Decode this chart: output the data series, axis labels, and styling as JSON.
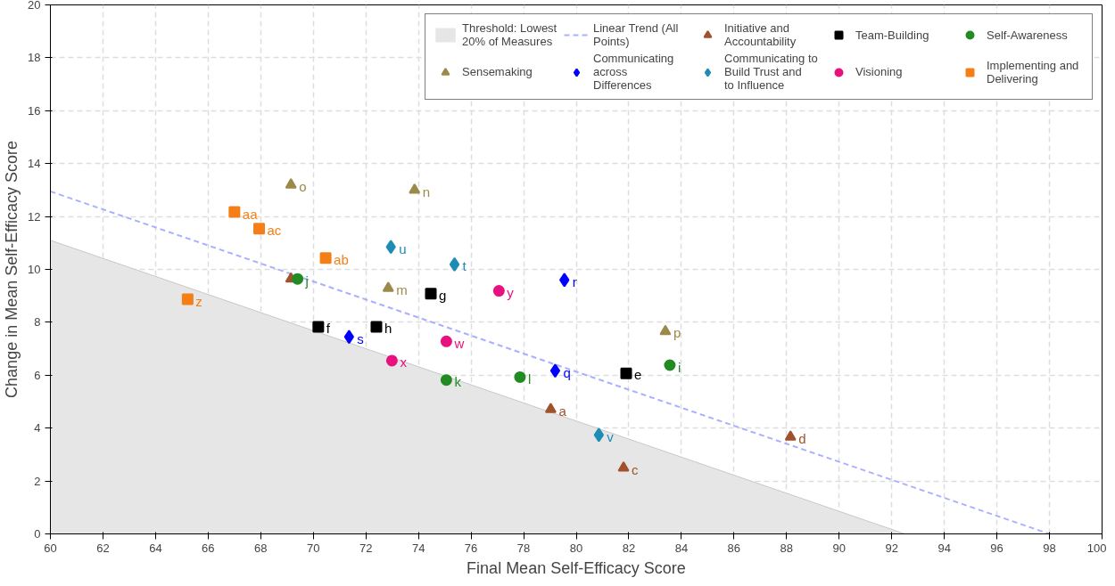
{
  "chart_data": {
    "type": "scatter",
    "xlabel": "Final Mean Self-Efficacy Score",
    "ylabel": "Change in Mean Self-Efficacy Score",
    "xlim": [
      60,
      100
    ],
    "ylim": [
      0,
      20
    ],
    "xticks": [
      60,
      62,
      64,
      66,
      68,
      70,
      72,
      74,
      76,
      78,
      80,
      82,
      84,
      86,
      88,
      90,
      92,
      94,
      96,
      98,
      100
    ],
    "yticks": [
      0,
      2,
      4,
      6,
      8,
      10,
      12,
      14,
      16,
      18,
      20
    ],
    "grid": true,
    "legend": "top right",
    "series": [
      {
        "name": "Threshold: Lowest 20% of Measures",
        "type": "area",
        "color": "#e6e6e6",
        "x": [
          60,
          92.5
        ],
        "values": [
          11.1,
          0
        ]
      },
      {
        "name": "Linear Trend (All Points)",
        "type": "line",
        "line_style": "dashed",
        "color": "#aab0ff",
        "x": [
          60,
          98
        ],
        "values": [
          12.95,
          0
        ]
      },
      {
        "name": "Initiative and Accountability",
        "marker": "triangle",
        "color": "#a0522d",
        "x": [
          79.03,
          81.8,
          88.15,
          69.15
        ],
        "values": [
          4.71,
          2.5,
          3.67,
          9.64
        ],
        "value_labels": [
          "a",
          "c",
          "d",
          null
        ]
      },
      {
        "name": "Team-Building",
        "marker": "square",
        "color": "#000000",
        "x": [
          81.9,
          70.19,
          74.47,
          72.4
        ],
        "values": [
          6.07,
          7.83,
          9.08,
          7.83
        ],
        "value_labels": [
          "e",
          "f",
          "g",
          "h"
        ]
      },
      {
        "name": "Self-Awareness",
        "marker": "circle",
        "color": "#228b22",
        "x": [
          83.56,
          69.4,
          75.06,
          77.86
        ],
        "values": [
          6.38,
          9.64,
          5.82,
          5.93
        ],
        "value_labels": [
          "i",
          "j",
          "k",
          "l"
        ]
      },
      {
        "name": "Sensemaking",
        "marker": "triangle",
        "color": "#9c8a4a",
        "x": [
          72.85,
          73.85,
          69.15,
          83.39
        ],
        "values": [
          9.29,
          13.0,
          13.2,
          7.66
        ],
        "value_labels": [
          "m",
          "n",
          "o",
          "p"
        ]
      },
      {
        "name": "Communicating across Differences",
        "marker": "diamond",
        "color": "#0000ff",
        "x": [
          79.2,
          79.55,
          71.36
        ],
        "values": [
          6.17,
          9.6,
          7.45
        ],
        "value_labels": [
          "q",
          "r",
          "s"
        ]
      },
      {
        "name": "Communicating to Build Trust and to Influence",
        "marker": "diamond",
        "color": "#1e8cb4",
        "x": [
          75.37,
          72.95,
          80.86
        ],
        "values": [
          10.19,
          10.85,
          3.74
        ],
        "value_labels": [
          "t",
          "u",
          "v"
        ]
      },
      {
        "name": "Visioning",
        "marker": "circle",
        "color": "#e8117f",
        "x": [
          75.06,
          72.99,
          77.06
        ],
        "values": [
          7.28,
          6.55,
          9.19
        ],
        "value_labels": [
          "w",
          "x",
          "y"
        ]
      },
      {
        "name": "Implementing and Delivering",
        "marker": "square",
        "color": "#f57f17",
        "x": [
          65.22,
          67.0,
          70.47,
          67.94
        ],
        "values": [
          8.87,
          12.17,
          10.43,
          11.54
        ],
        "value_labels": [
          "z",
          "aa",
          "ab",
          "ac"
        ]
      }
    ]
  }
}
